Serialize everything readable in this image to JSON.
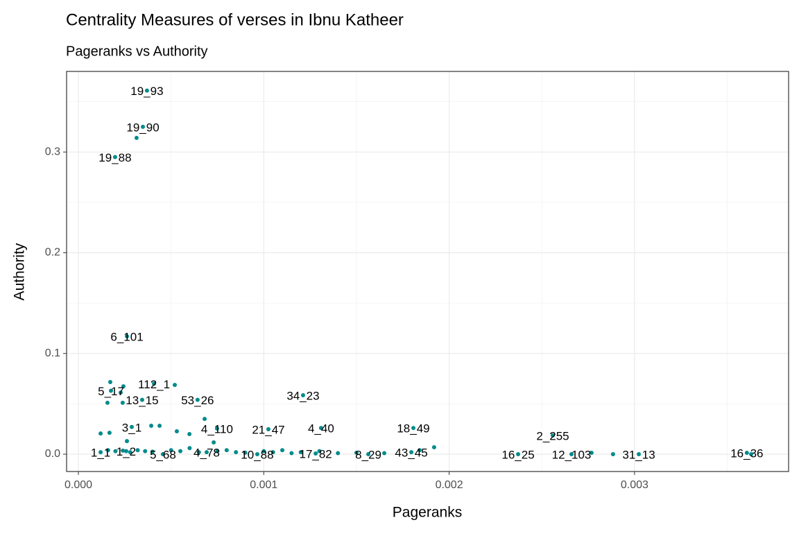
{
  "chart_data": {
    "type": "scatter",
    "title": "Centrality Measures of verses in Ibnu Katheer",
    "subtitle": "Pageranks vs Authority",
    "x_label": "Pageranks",
    "y_label": "Authority",
    "xlim": [
      -6.36e-05,
      0.003831
    ],
    "ylim": [
      -0.0172,
      0.38
    ],
    "xticks": [
      {
        "value": 0,
        "label": "0.000"
      },
      {
        "value": 0.001,
        "label": "0.001"
      },
      {
        "value": 0.002,
        "label": "0.002"
      },
      {
        "value": 0.003,
        "label": "0.003"
      }
    ],
    "yticks": [
      {
        "value": 0,
        "label": "0.0"
      },
      {
        "value": 0.1,
        "label": "0.1"
      },
      {
        "value": 0.2,
        "label": "0.2"
      },
      {
        "value": 0.3,
        "label": "0.3"
      }
    ],
    "minor_xticks": [
      0.0005,
      0.0015,
      0.0025,
      0.0035
    ],
    "minor_yticks": [
      0.05,
      0.15,
      0.25,
      0.35
    ],
    "grid": true,
    "series": [
      {
        "color": "#008b8b",
        "x": [
          0.00037,
          0.000348,
          0.000198,
          0.000262,
          0.001212,
          0.000643,
          0.000344,
          0.000408,
          0.000176,
          0.000288,
          0.000748,
          0.001025,
          0.001309,
          0.001807,
          0.002559,
          0.002372,
          0.00266,
          0.003023,
          0.003606,
          0.001796,
          0.001564,
          0.00128,
          0.000965,
          0.000692,
          0.000456,
          0.000258,
          0.00012,
          0.000314,
          0.000172,
          0.000243,
          0.00052,
          0.000228,
          0.000157,
          0.000239,
          0.000681,
          0.00012,
          0.000168,
          0.000393,
          0.000438,
          0.000531,
          0.000599,
          0.000262,
          0.00073,
          0.001919,
          0.001841,
          0.002768,
          0.002884,
          0.003629,
          0.00016,
          0.0002,
          0.00024,
          0.00028,
          0.00032,
          0.00036,
          0.0004,
          0.0005,
          0.00055,
          0.0006,
          0.00065,
          0.00075,
          0.0008,
          0.00085,
          0.0009,
          0.001,
          0.00105,
          0.0011,
          0.00115,
          0.0012,
          0.0013,
          0.0014,
          0.0015,
          0.00165
        ],
        "values": [
          0.361,
          0.325,
          0.295,
          0.117,
          0.0585,
          0.054,
          0.054,
          0.07,
          0.063,
          0.027,
          0.0255,
          0.0248,
          0.026,
          0.026,
          0.0186,
          0,
          0,
          0,
          0.0014,
          0.002,
          0,
          0.0007,
          0,
          0.002,
          0,
          0.003,
          0.002,
          0.314,
          0.0716,
          0.0674,
          0.0688,
          0.0612,
          0.051,
          0.051,
          0.035,
          0.0206,
          0.0213,
          0.0282,
          0.0282,
          0.0227,
          0.02,
          0.013,
          0.0117,
          0.0069,
          0.004,
          0.0014,
          0,
          0,
          0.004,
          0.003,
          0.0035,
          0.002,
          0.004,
          0.003,
          0.0025,
          0.004,
          0.003,
          0.006,
          0.002,
          0.003,
          0.004,
          0.002,
          0.0015,
          0.003,
          0.002,
          0.004,
          0.001,
          0.002,
          0.003,
          0.001,
          0.0015,
          0.001
        ],
        "labels": [
          "19_93",
          "19_90",
          "19_88",
          "6_101",
          "34_23",
          "53_26",
          "13_15",
          "112_1",
          "5_17",
          "3_1",
          "4_110",
          "21_47",
          "4_40",
          "18_49",
          "2_255",
          "16_25",
          "12_103",
          "31_13",
          "16_36",
          "43_45",
          "8_29",
          "17_82",
          "10_88",
          "4_78",
          "5_68",
          "1_2",
          "1_1",
          null,
          null,
          null,
          null,
          null,
          null,
          null,
          null,
          null,
          null,
          null,
          null,
          null,
          null,
          null,
          null,
          null,
          null,
          null,
          null,
          null,
          null,
          null,
          null,
          null,
          null,
          null,
          null,
          null,
          null,
          null,
          null,
          null,
          null,
          null,
          null,
          null,
          null,
          null,
          null,
          null,
          null,
          null,
          null,
          null
        ]
      }
    ]
  }
}
